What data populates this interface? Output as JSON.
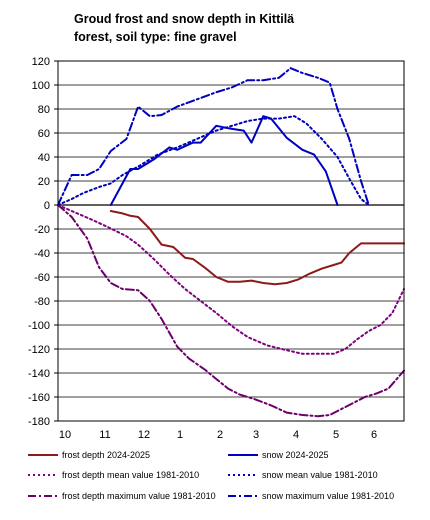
{
  "chart_data": {
    "type": "line",
    "title_lines": [
      "Groud frost and snow depth in Kittilä",
      "forest, soil type: fine gravel"
    ],
    "x_ticks": [
      "10",
      "11",
      "12",
      "1",
      "2",
      "3",
      "4",
      "5",
      "6"
    ],
    "x_range": [
      9.95,
      18.8
    ],
    "ylim": [
      -180,
      120
    ],
    "y_ticks": [
      120,
      100,
      80,
      60,
      40,
      20,
      0,
      -20,
      -40,
      -60,
      -80,
      -100,
      -120,
      -140,
      -160,
      -180
    ],
    "grid": "horizontal",
    "legend_position": "bottom",
    "series": [
      {
        "name": "frost depth 2024-2025",
        "color": "#8b1a1a",
        "style": "solid",
        "width": 2,
        "points": [
          [
            11.3,
            -5
          ],
          [
            11.6,
            -7
          ],
          [
            11.8,
            -9
          ],
          [
            12.0,
            -10
          ],
          [
            12.3,
            -20
          ],
          [
            12.6,
            -33
          ],
          [
            12.9,
            -35
          ],
          [
            13.2,
            -44
          ],
          [
            13.4,
            -45
          ],
          [
            13.7,
            -52
          ],
          [
            14.0,
            -60
          ],
          [
            14.3,
            -64
          ],
          [
            14.6,
            -64
          ],
          [
            14.9,
            -63
          ],
          [
            15.2,
            -65
          ],
          [
            15.5,
            -66
          ],
          [
            15.8,
            -65
          ],
          [
            16.1,
            -62
          ],
          [
            16.4,
            -57
          ],
          [
            16.7,
            -53
          ],
          [
            17.0,
            -50
          ],
          [
            17.2,
            -48
          ],
          [
            17.4,
            -40
          ],
          [
            17.7,
            -32
          ],
          [
            18.0,
            -32
          ],
          [
            18.8,
            -32
          ]
        ]
      },
      {
        "name": "snow 2024-2025",
        "color": "#0000c0",
        "style": "solid",
        "width": 2,
        "points": [
          [
            11.3,
            0
          ],
          [
            11.8,
            30
          ],
          [
            12.0,
            30
          ],
          [
            12.4,
            38
          ],
          [
            12.8,
            48
          ],
          [
            13.0,
            46
          ],
          [
            13.4,
            52
          ],
          [
            13.6,
            52
          ],
          [
            14.0,
            66
          ],
          [
            14.3,
            64
          ],
          [
            14.7,
            62
          ],
          [
            14.9,
            52
          ],
          [
            15.2,
            74
          ],
          [
            15.4,
            72
          ],
          [
            15.8,
            56
          ],
          [
            16.2,
            46
          ],
          [
            16.5,
            42
          ],
          [
            16.8,
            28
          ],
          [
            17.1,
            0
          ]
        ]
      },
      {
        "name": "frost depth mean value 1981-2010",
        "color": "#800080",
        "style": "dot",
        "width": 2,
        "points": [
          [
            9.95,
            0
          ],
          [
            10.3,
            -5
          ],
          [
            10.8,
            -12
          ],
          [
            11.2,
            -18
          ],
          [
            11.7,
            -26
          ],
          [
            12.0,
            -33
          ],
          [
            12.4,
            -45
          ],
          [
            12.8,
            -58
          ],
          [
            13.2,
            -70
          ],
          [
            13.6,
            -80
          ],
          [
            14.0,
            -90
          ],
          [
            14.4,
            -101
          ],
          [
            14.8,
            -110
          ],
          [
            15.3,
            -117
          ],
          [
            15.8,
            -121
          ],
          [
            16.2,
            -124
          ],
          [
            16.6,
            -124
          ],
          [
            17.0,
            -124
          ],
          [
            17.3,
            -120
          ],
          [
            17.6,
            -112
          ],
          [
            17.9,
            -105
          ],
          [
            18.2,
            -100
          ],
          [
            18.5,
            -90
          ],
          [
            18.8,
            -70
          ]
        ]
      },
      {
        "name": "snow mean value 1981-2010",
        "color": "#0000c0",
        "style": "dot",
        "width": 2,
        "points": [
          [
            9.95,
            0
          ],
          [
            10.3,
            5
          ],
          [
            10.6,
            10
          ],
          [
            11.0,
            15
          ],
          [
            11.3,
            18
          ],
          [
            11.6,
            25
          ],
          [
            12.0,
            32
          ],
          [
            12.5,
            42
          ],
          [
            13.0,
            48
          ],
          [
            13.5,
            55
          ],
          [
            14.0,
            62
          ],
          [
            14.4,
            66
          ],
          [
            14.8,
            70
          ],
          [
            15.2,
            72
          ],
          [
            15.6,
            72
          ],
          [
            16.0,
            74
          ],
          [
            16.3,
            68
          ],
          [
            16.7,
            55
          ],
          [
            17.1,
            40
          ],
          [
            17.4,
            22
          ],
          [
            17.7,
            5
          ],
          [
            17.9,
            0
          ]
        ]
      },
      {
        "name": "frost depth maximum value 1981-2010",
        "color": "#6b006b",
        "style": "dashdot",
        "width": 2,
        "points": [
          [
            9.95,
            0
          ],
          [
            10.3,
            -10
          ],
          [
            10.7,
            -28
          ],
          [
            11.0,
            -52
          ],
          [
            11.3,
            -65
          ],
          [
            11.6,
            -70
          ],
          [
            12.0,
            -71
          ],
          [
            12.3,
            -80
          ],
          [
            12.6,
            -95
          ],
          [
            13.0,
            -118
          ],
          [
            13.3,
            -128
          ],
          [
            13.7,
            -137
          ],
          [
            14.0,
            -145
          ],
          [
            14.3,
            -153
          ],
          [
            14.6,
            -158
          ],
          [
            15.0,
            -162
          ],
          [
            15.4,
            -167
          ],
          [
            15.8,
            -173
          ],
          [
            16.2,
            -175
          ],
          [
            16.6,
            -176
          ],
          [
            16.9,
            -175
          ],
          [
            17.2,
            -170
          ],
          [
            17.5,
            -165
          ],
          [
            17.8,
            -160
          ],
          [
            18.1,
            -157
          ],
          [
            18.4,
            -153
          ],
          [
            18.8,
            -138
          ]
        ]
      },
      {
        "name": "snow maximum value 1981-2010",
        "color": "#0000c0",
        "style": "dashdot",
        "width": 2,
        "points": [
          [
            9.95,
            0
          ],
          [
            10.3,
            25
          ],
          [
            10.7,
            25
          ],
          [
            11.0,
            30
          ],
          [
            11.3,
            45
          ],
          [
            11.7,
            55
          ],
          [
            12.0,
            82
          ],
          [
            12.3,
            74
          ],
          [
            12.6,
            75
          ],
          [
            13.0,
            82
          ],
          [
            13.5,
            88
          ],
          [
            14.0,
            94
          ],
          [
            14.4,
            98
          ],
          [
            14.8,
            104
          ],
          [
            15.2,
            104
          ],
          [
            15.6,
            106
          ],
          [
            15.9,
            114
          ],
          [
            16.2,
            110
          ],
          [
            16.6,
            106
          ],
          [
            16.9,
            102
          ],
          [
            17.1,
            80
          ],
          [
            17.4,
            55
          ],
          [
            17.7,
            20
          ],
          [
            17.9,
            0
          ]
        ]
      }
    ]
  }
}
